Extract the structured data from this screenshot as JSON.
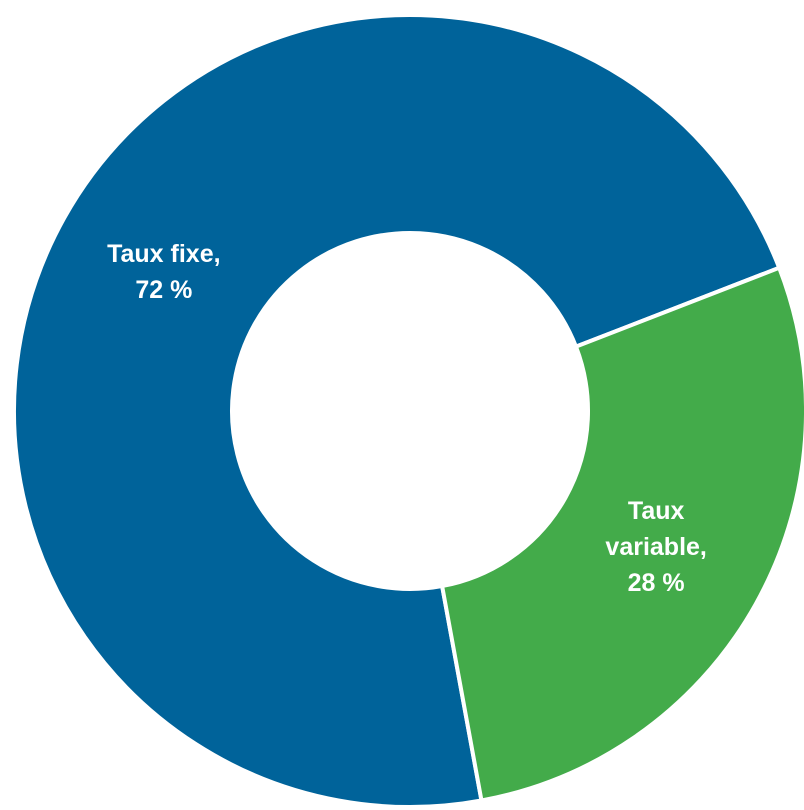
{
  "chart_data": {
    "type": "donut",
    "labels": [
      [
        "Taux fixe,",
        "72 %"
      ],
      [
        "Taux",
        "variable,",
        "28 %"
      ]
    ],
    "values": [
      72,
      28
    ],
    "value_labels": [
      "72 %",
      "28 %"
    ],
    "colors": [
      "#00639a",
      "#43ab4a"
    ]
  }
}
